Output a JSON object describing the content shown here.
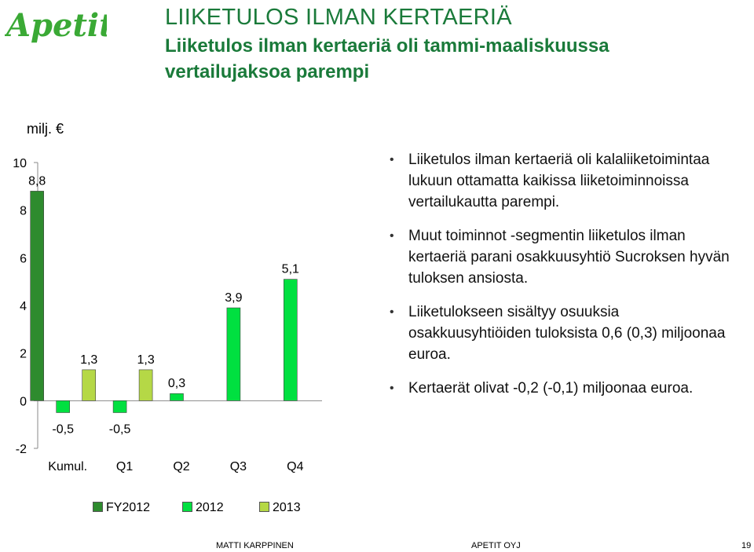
{
  "header": {
    "logo_text": "Apetit",
    "title": "LIIKETULOS ILMAN KERTAERIÄ",
    "subtitle": "Liiketulos ilman kertaeriä oli tammi-maaliskuussa vertailujaksoa parempi"
  },
  "chart_data": {
    "type": "bar",
    "ylabel": "milj. €",
    "ylim": [
      -2,
      10
    ],
    "yticks": [
      "-2",
      "0",
      "2",
      "4",
      "6",
      "8",
      "10"
    ],
    "categories": [
      "Kumul.",
      "Q1",
      "Q2",
      "Q3",
      "Q4"
    ],
    "series": [
      {
        "name": "FY2012",
        "color": "#2e8b2e",
        "values": [
          8.8,
          null,
          null,
          null,
          null
        ],
        "labels": [
          "8,8",
          "",
          "",
          "",
          ""
        ]
      },
      {
        "name": "2012",
        "color": "#00e040",
        "values": [
          -0.5,
          -0.5,
          0.3,
          3.9,
          5.1
        ],
        "labels": [
          "-0,5",
          "-0,5",
          "0,3",
          "3,9",
          "5,1"
        ]
      },
      {
        "name": "2013",
        "color": "#b5d846",
        "values": [
          1.3,
          1.3,
          null,
          null,
          null
        ],
        "labels": [
          "1,3",
          "1,3",
          "",
          "",
          ""
        ]
      }
    ],
    "legend": "bottom",
    "grid": false
  },
  "bullets": [
    "Liiketulos ilman kertaeriä oli kalaliiketoimintaa lukuun ottamatta kaikissa liiketoiminnoissa vertailukautta parempi.",
    "Muut toiminnot -segmentin liiketulos ilman kertaeriä parani osakkuusyhtiö Sucroksen hyvän tuloksen ansiosta.",
    "Liiketulokseen sisältyy osuuksia osakkuusyhtiöiden tuloksista 0,6 (0,3) miljoonaa euroa.",
    "Kertaerät olivat -0,2 (-0,1) miljoonaa euroa."
  ],
  "footer": {
    "presenter": "MATTI KARPPINEN",
    "company": "APETIT OYJ",
    "page": "19"
  }
}
